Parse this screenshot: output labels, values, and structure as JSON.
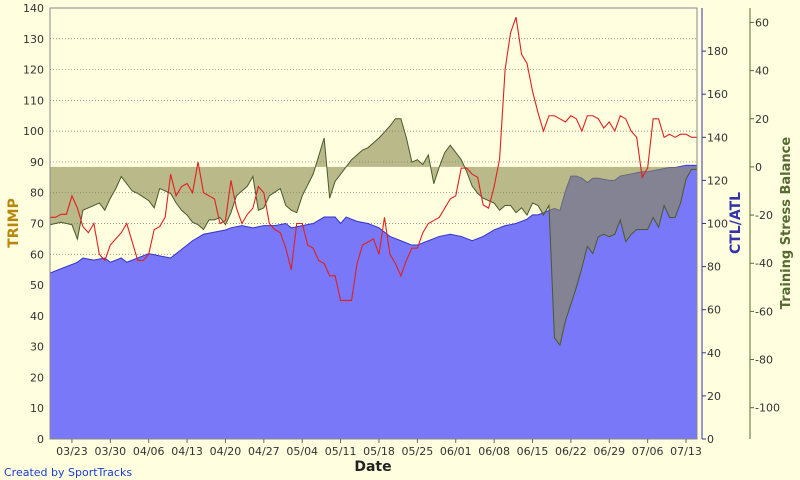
{
  "chart_data": {
    "type": "area",
    "xlabel": "Date",
    "axes": {
      "left": {
        "label": "TRIMP",
        "range": [
          0,
          140
        ],
        "ticks": [
          0,
          10,
          20,
          30,
          40,
          50,
          60,
          70,
          80,
          90,
          100,
          110,
          120,
          130,
          140
        ],
        "color": "#b8860b"
      },
      "right1": {
        "label": "CTL/ATL",
        "range": [
          0,
          200
        ],
        "ticks": [
          0,
          20,
          40,
          60,
          80,
          100,
          120,
          140,
          160,
          180
        ],
        "color": "#3333aa"
      },
      "right2": {
        "label": "Training Stress Balance",
        "range": [
          -113,
          66
        ],
        "ticks": [
          -100,
          -80,
          -60,
          -40,
          -20,
          0,
          20,
          40,
          60
        ],
        "color": "#556b2f"
      }
    },
    "x_range": [
      0,
      118
    ],
    "x_tick_labels": [
      {
        "x": 4,
        "label": "03/23"
      },
      {
        "x": 11,
        "label": "03/30"
      },
      {
        "x": 18,
        "label": "04/06"
      },
      {
        "x": 25,
        "label": "04/13"
      },
      {
        "x": 32,
        "label": "04/20"
      },
      {
        "x": 39,
        "label": "04/27"
      },
      {
        "x": 46,
        "label": "05/04"
      },
      {
        "x": 53,
        "label": "05/11"
      },
      {
        "x": 60,
        "label": "05/18"
      },
      {
        "x": 67,
        "label": "05/25"
      },
      {
        "x": 74,
        "label": "06/01"
      },
      {
        "x": 81,
        "label": "06/08"
      },
      {
        "x": 88,
        "label": "06/15"
      },
      {
        "x": 95,
        "label": "06/22"
      },
      {
        "x": 102,
        "label": "06/29"
      },
      {
        "x": 109,
        "label": "07/06"
      },
      {
        "x": 116,
        "label": "07/13"
      }
    ],
    "grid": true,
    "credit": "Created by SportTracks",
    "series": [
      {
        "axis": "right1",
        "style": "area",
        "color": "#7878f8",
        "points": [
          [
            0,
            77
          ],
          [
            2,
            79
          ],
          [
            5,
            82
          ],
          [
            6,
            84
          ],
          [
            8,
            83
          ],
          [
            10,
            84
          ],
          [
            11,
            82
          ],
          [
            13,
            84
          ],
          [
            14,
            82
          ],
          [
            16,
            84
          ],
          [
            18,
            86
          ],
          [
            20,
            85
          ],
          [
            22,
            84
          ],
          [
            24,
            88
          ],
          [
            26,
            92
          ],
          [
            28,
            95
          ],
          [
            30,
            96
          ],
          [
            32,
            97
          ],
          [
            33,
            98
          ],
          [
            35,
            99
          ],
          [
            37,
            98
          ],
          [
            39,
            99
          ],
          [
            41,
            99
          ],
          [
            43,
            100
          ],
          [
            44,
            98
          ],
          [
            46,
            99
          ],
          [
            48,
            100
          ],
          [
            50,
            103
          ],
          [
            52,
            103
          ],
          [
            53,
            100
          ],
          [
            54,
            103
          ],
          [
            56,
            101
          ],
          [
            58,
            100
          ],
          [
            60,
            98
          ],
          [
            62,
            94
          ],
          [
            64,
            92
          ],
          [
            66,
            90
          ],
          [
            67,
            90
          ],
          [
            69,
            92
          ],
          [
            71,
            94
          ],
          [
            73,
            95
          ],
          [
            75,
            94
          ],
          [
            77,
            92
          ],
          [
            79,
            94
          ],
          [
            81,
            97
          ],
          [
            83,
            99
          ],
          [
            85,
            100
          ],
          [
            87,
            102
          ],
          [
            88,
            104
          ],
          [
            89,
            104
          ],
          [
            91,
            106
          ],
          [
            92,
            107
          ],
          [
            93,
            106
          ],
          [
            94,
            115
          ],
          [
            95,
            122
          ],
          [
            96,
            122
          ],
          [
            97,
            121
          ],
          [
            98,
            119
          ],
          [
            99,
            121
          ],
          [
            100,
            121
          ],
          [
            102,
            120
          ],
          [
            103,
            120
          ],
          [
            104,
            122
          ],
          [
            106,
            123
          ],
          [
            108,
            124
          ],
          [
            109,
            124
          ],
          [
            111,
            125
          ],
          [
            113,
            126
          ],
          [
            114,
            126
          ],
          [
            116,
            127
          ],
          [
            118,
            127
          ]
        ]
      },
      {
        "axis": "right2",
        "style": "area",
        "color": "#8a8a50",
        "points": [
          [
            0,
            -24
          ],
          [
            2,
            -23
          ],
          [
            4,
            -24
          ],
          [
            5,
            -30
          ],
          [
            6,
            -18
          ],
          [
            8,
            -16
          ],
          [
            9,
            -15
          ],
          [
            10,
            -18
          ],
          [
            11,
            -13
          ],
          [
            12,
            -9
          ],
          [
            13,
            -4
          ],
          [
            14,
            -7
          ],
          [
            15,
            -10
          ],
          [
            16,
            -11
          ],
          [
            18,
            -14
          ],
          [
            19,
            -17
          ],
          [
            20,
            -9
          ],
          [
            22,
            -11
          ],
          [
            23,
            -15
          ],
          [
            24,
            -18
          ],
          [
            25,
            -20
          ],
          [
            26,
            -23
          ],
          [
            27,
            -24
          ],
          [
            28,
            -26
          ],
          [
            29,
            -22
          ],
          [
            30,
            -22
          ],
          [
            31,
            -21
          ],
          [
            32,
            -24
          ],
          [
            33,
            -19
          ],
          [
            34,
            -12
          ],
          [
            36,
            -8
          ],
          [
            37,
            -4
          ],
          [
            38,
            -18
          ],
          [
            39,
            -17
          ],
          [
            40,
            -12
          ],
          [
            42,
            -9
          ],
          [
            43,
            -16
          ],
          [
            44,
            -18
          ],
          [
            45,
            -19
          ],
          [
            46,
            -12
          ],
          [
            48,
            -3
          ],
          [
            50,
            12
          ],
          [
            51,
            -13
          ],
          [
            52,
            -6
          ],
          [
            53,
            -3
          ],
          [
            55,
            3
          ],
          [
            56,
            5
          ],
          [
            57,
            7
          ],
          [
            58,
            8
          ],
          [
            60,
            12
          ],
          [
            62,
            17
          ],
          [
            63,
            20
          ],
          [
            64,
            20
          ],
          [
            65,
            12
          ],
          [
            66,
            2
          ],
          [
            67,
            3
          ],
          [
            68,
            1
          ],
          [
            69,
            5
          ],
          [
            70,
            -7
          ],
          [
            71,
            0
          ],
          [
            72,
            6
          ],
          [
            73,
            9
          ],
          [
            74,
            6
          ],
          [
            75,
            3
          ],
          [
            76,
            -2
          ],
          [
            77,
            -8
          ],
          [
            78,
            -11
          ],
          [
            79,
            -13
          ],
          [
            80,
            -14
          ],
          [
            81,
            -15
          ],
          [
            82,
            -18
          ],
          [
            83,
            -16
          ],
          [
            84,
            -16
          ],
          [
            85,
            -19
          ],
          [
            86,
            -17
          ],
          [
            87,
            -20
          ],
          [
            88,
            -15
          ],
          [
            89,
            -16
          ],
          [
            90,
            -20
          ],
          [
            91,
            -16
          ],
          [
            92,
            -71
          ],
          [
            93,
            -74
          ],
          [
            94,
            -64
          ],
          [
            95,
            -57
          ],
          [
            96,
            -50
          ],
          [
            97,
            -42
          ],
          [
            98,
            -33
          ],
          [
            99,
            -36
          ],
          [
            100,
            -29
          ],
          [
            101,
            -28
          ],
          [
            102,
            -29
          ],
          [
            103,
            -28
          ],
          [
            104,
            -22
          ],
          [
            105,
            -31
          ],
          [
            106,
            -28
          ],
          [
            107,
            -26
          ],
          [
            108,
            -26
          ],
          [
            109,
            -26
          ],
          [
            110,
            -21
          ],
          [
            111,
            -25
          ],
          [
            112,
            -16
          ],
          [
            113,
            -21
          ],
          [
            114,
            -21
          ],
          [
            115,
            -15
          ],
          [
            116,
            -5
          ],
          [
            117,
            -1
          ],
          [
            118,
            -1
          ]
        ]
      },
      {
        "axis": "left",
        "style": "line",
        "color": "#e02020",
        "points": [
          [
            0,
            72
          ],
          [
            1,
            72
          ],
          [
            2,
            73
          ],
          [
            3,
            73
          ],
          [
            4,
            79
          ],
          [
            5,
            75
          ],
          [
            6,
            69
          ],
          [
            7,
            67
          ],
          [
            8,
            70
          ],
          [
            9,
            60
          ],
          [
            10,
            58
          ],
          [
            11,
            63
          ],
          [
            12,
            65
          ],
          [
            13,
            67
          ],
          [
            14,
            70
          ],
          [
            15,
            64
          ],
          [
            16,
            58
          ],
          [
            17,
            58
          ],
          [
            18,
            60
          ],
          [
            19,
            68
          ],
          [
            20,
            69
          ],
          [
            21,
            72
          ],
          [
            22,
            86
          ],
          [
            23,
            79
          ],
          [
            24,
            82
          ],
          [
            25,
            83
          ],
          [
            26,
            80
          ],
          [
            27,
            90
          ],
          [
            28,
            80
          ],
          [
            29,
            79
          ],
          [
            30,
            78
          ],
          [
            31,
            70
          ],
          [
            32,
            71
          ],
          [
            33,
            84
          ],
          [
            34,
            75
          ],
          [
            35,
            70
          ],
          [
            36,
            73
          ],
          [
            37,
            75
          ],
          [
            38,
            82
          ],
          [
            39,
            80
          ],
          [
            40,
            70
          ],
          [
            41,
            68
          ],
          [
            42,
            67
          ],
          [
            43,
            62
          ],
          [
            44,
            55
          ],
          [
            45,
            70
          ],
          [
            46,
            70
          ],
          [
            47,
            63
          ],
          [
            48,
            62
          ],
          [
            49,
            58
          ],
          [
            50,
            57
          ],
          [
            51,
            53
          ],
          [
            52,
            53
          ],
          [
            53,
            45
          ],
          [
            54,
            45
          ],
          [
            55,
            45
          ],
          [
            56,
            57
          ],
          [
            57,
            63
          ],
          [
            58,
            64
          ],
          [
            59,
            65
          ],
          [
            60,
            60
          ],
          [
            61,
            72
          ],
          [
            62,
            60
          ],
          [
            63,
            57
          ],
          [
            64,
            53
          ],
          [
            65,
            58
          ],
          [
            66,
            62
          ],
          [
            67,
            62
          ],
          [
            68,
            67
          ],
          [
            69,
            70
          ],
          [
            70,
            71
          ],
          [
            71,
            72
          ],
          [
            72,
            75
          ],
          [
            73,
            78
          ],
          [
            74,
            79
          ],
          [
            75,
            88
          ],
          [
            76,
            88
          ],
          [
            77,
            86
          ],
          [
            78,
            85
          ],
          [
            79,
            76
          ],
          [
            80,
            75
          ],
          [
            81,
            82
          ],
          [
            82,
            91
          ],
          [
            83,
            120
          ],
          [
            84,
            132
          ],
          [
            85,
            137
          ],
          [
            86,
            125
          ],
          [
            87,
            122
          ],
          [
            88,
            113
          ],
          [
            89,
            106
          ],
          [
            90,
            100
          ],
          [
            91,
            105
          ],
          [
            92,
            105
          ],
          [
            93,
            104
          ],
          [
            94,
            103
          ],
          [
            95,
            105
          ],
          [
            96,
            104
          ],
          [
            97,
            100
          ],
          [
            98,
            105
          ],
          [
            99,
            105
          ],
          [
            100,
            104
          ],
          [
            101,
            101
          ],
          [
            102,
            103
          ],
          [
            103,
            100
          ],
          [
            104,
            105
          ],
          [
            105,
            104
          ],
          [
            106,
            100
          ],
          [
            107,
            98
          ],
          [
            108,
            85
          ],
          [
            109,
            88
          ],
          [
            110,
            104
          ],
          [
            111,
            104
          ],
          [
            112,
            98
          ],
          [
            113,
            99
          ],
          [
            114,
            98
          ],
          [
            115,
            99
          ],
          [
            116,
            99
          ],
          [
            117,
            98
          ],
          [
            118,
            98
          ]
        ]
      }
    ]
  }
}
